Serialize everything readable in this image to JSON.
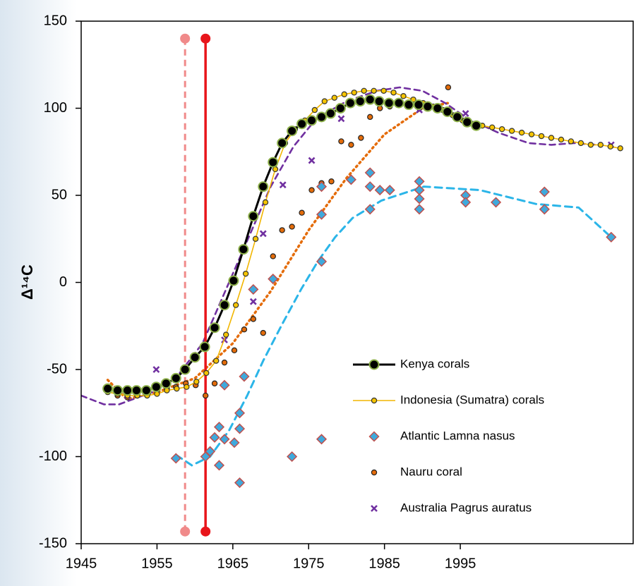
{
  "chart_data": {
    "type": "scatter",
    "ylabel": "Δ¹⁴C",
    "xlim": [
      1945,
      2017.8
    ],
    "ylim": [
      -150,
      150
    ],
    "xticks": [
      1945,
      1955,
      1965,
      1975,
      1985,
      1995
    ],
    "yticks": [
      -150,
      -100,
      -50,
      0,
      50,
      100,
      150
    ],
    "legend": "lower right",
    "reference_lines": [
      {
        "x": 1958.7,
        "ymin": -143,
        "ymax": 140,
        "color": "#f08a8a",
        "dashed": true
      },
      {
        "x": 1961.4,
        "ymin": -143,
        "ymax": 140,
        "color": "#e8151b",
        "dashed": false
      }
    ],
    "series": [
      {
        "name": "Kenya corals",
        "marker": "circle",
        "color": "#000000",
        "edgecolor": "#8db04a",
        "line": "#000000",
        "x": [
          1948.5,
          1949.8,
          1951.1,
          1952.3,
          1953.6,
          1954.9,
          1956.2,
          1957.5,
          1958.7,
          1960.0,
          1961.3,
          1962.6,
          1963.9,
          1965.1,
          1966.4,
          1967.7,
          1969.0,
          1970.3,
          1971.5,
          1972.8,
          1974.1,
          1975.4,
          1976.7,
          1977.9,
          1979.2,
          1980.5,
          1981.8,
          1983.1,
          1984.3,
          1985.6,
          1986.9,
          1988.2,
          1989.5,
          1990.7,
          1992.0,
          1993.3,
          1994.6,
          1995.9,
          1997.1
        ],
        "values": [
          -61,
          -62,
          -62,
          -62,
          -62,
          -60,
          -58,
          -55,
          -50,
          -43,
          -37,
          -26,
          -13,
          1,
          19,
          38,
          55,
          69,
          80,
          87,
          91,
          93,
          95,
          97,
          100,
          103,
          104,
          105,
          104,
          103,
          103,
          102,
          102,
          101,
          100,
          98,
          95,
          92,
          90
        ]
      },
      {
        "name": "Indonesia (Sumatra) corals",
        "marker": "dot",
        "color": "#f5c400",
        "edgecolor": "#333333",
        "line": "#f2b600",
        "x": [
          1948.5,
          1949.8,
          1951.1,
          1952.4,
          1953.7,
          1955.0,
          1956.3,
          1957.6,
          1958.9,
          1960.2,
          1961.5,
          1962.8,
          1964.1,
          1965.4,
          1966.7,
          1968.0,
          1969.3,
          1970.6,
          1971.9,
          1973.2,
          1974.5,
          1975.8,
          1977.1,
          1978.4,
          1979.7,
          1981.0,
          1982.3,
          1983.6,
          1984.9,
          1986.2,
          1987.5,
          1988.8,
          1990.1,
          1991.4,
          1992.7,
          1994.0,
          1995.3,
          1996.6,
          1997.9,
          1999.2,
          2000.5,
          2001.8,
          2003.1,
          2004.4,
          2005.7,
          2007.0,
          2008.3,
          2009.6,
          2010.9,
          2012.2,
          2013.5,
          2014.8,
          2016.1
        ],
        "values": [
          -63,
          -64,
          -65,
          -65,
          -65,
          -64,
          -62,
          -61,
          -60,
          -57,
          -52,
          -45,
          -30,
          -13,
          5,
          25,
          46,
          65,
          80,
          88,
          93,
          99,
          104,
          106,
          108,
          109,
          110,
          110,
          110,
          109,
          107,
          105,
          103,
          101,
          99,
          96,
          93,
          91,
          90,
          89,
          88,
          87,
          86,
          85,
          84,
          83,
          82,
          81,
          80,
          79,
          79,
          78,
          77
        ]
      },
      {
        "name": "Atlantic Lamna nasus",
        "marker": "diamond",
        "color": "#3fa9dc",
        "edgecolor": "#c0504d",
        "x": [
          1957.5,
          1961.4,
          1962.0,
          1962.6,
          1963.2,
          1963.2,
          1963.9,
          1963.9,
          1965.2,
          1965.9,
          1965.9,
          1965.9,
          1966.5,
          1967.7,
          1970.3,
          1972.8,
          1976.7,
          1976.7,
          1976.7,
          1976.7,
          1980.6,
          1983.1,
          1983.1,
          1983.1,
          1984.4,
          1985.7,
          1989.6,
          1989.6,
          1989.6,
          1989.6,
          1995.7,
          1995.7,
          1999.7,
          2006.1,
          2006.1,
          2014.9
        ],
        "values": [
          -101,
          -100,
          -97,
          -89,
          -105,
          -83,
          -90,
          -59,
          -92,
          -75,
          -84,
          -115,
          -54,
          -4,
          2,
          -100,
          55,
          39,
          12,
          -90,
          59,
          63,
          55,
          42,
          53,
          53,
          58,
          53,
          48,
          42,
          50,
          46,
          46,
          52,
          42,
          26
        ],
        "fit": {
          "color": "#2bb5e8",
          "x": [
            1957.5,
            1959.6,
            1962.0,
            1964.5,
            1966.9,
            1969.0,
            1971.5,
            1974.0,
            1976.2,
            1978.5,
            1980.8,
            1984.6,
            1990.2,
            1997.6,
            2005.0,
            2010.6,
            2014.9
          ],
          "values": [
            -99,
            -105,
            -100,
            -85,
            -65,
            -45,
            -24,
            -4,
            12,
            26,
            37,
            47,
            55,
            53,
            45,
            43,
            26
          ]
        }
      },
      {
        "name": "Nauru coral",
        "marker": "dot",
        "color": "#e46c0a",
        "edgecolor": "#222222",
        "x": [
          1948.5,
          1949.8,
          1951.1,
          1952.4,
          1953.8,
          1955.0,
          1956.3,
          1957.5,
          1958.8,
          1960.1,
          1961.4,
          1962.6,
          1963.9,
          1965.2,
          1966.5,
          1967.7,
          1969.0,
          1970.3,
          1971.5,
          1972.8,
          1974.1,
          1975.4,
          1976.7,
          1978.0,
          1979.3,
          1980.6,
          1981.9,
          1983.1,
          1984.4,
          1985.7,
          1987.0,
          1988.3,
          1989.6,
          1993.4
        ],
        "values": [
          -62,
          -65,
          -66,
          -65,
          -64,
          -62,
          -61,
          -60,
          -58,
          -59,
          -65,
          -58,
          -46,
          -39,
          -27,
          -21,
          -29,
          15,
          30,
          32,
          40,
          53,
          57,
          58,
          81,
          79,
          83,
          95,
          100,
          101,
          102,
          102,
          100,
          112
        ],
        "fit": {
          "color": "#e46c0a",
          "x": [
            1948.5,
            1951.0,
            1955.0,
            1960.0,
            1965.0,
            1970.0,
            1975.0,
            1980.0,
            1985.0,
            1990.0,
            1993.4
          ],
          "values": [
            -56,
            -67,
            -63,
            -55,
            -35,
            -5,
            30,
            60,
            85,
            100,
            103
          ]
        }
      },
      {
        "name": "Australia Pagrus auratus",
        "marker": "x",
        "color": "#7030a0",
        "x": [
          1951.1,
          1954.9,
          1963.9,
          1967.7,
          1969.0,
          1971.6,
          1975.4,
          1979.3,
          1989.6,
          1995.7,
          2014.9
        ],
        "values": [
          -65,
          -50,
          -33,
          -11,
          28,
          56,
          70,
          94,
          99,
          97,
          79
        ],
        "fit": {
          "color": "#7030a0",
          "x": [
            1945,
            1948,
            1950,
            1955,
            1958,
            1961,
            1964,
            1967,
            1970,
            1973,
            1976,
            1980,
            1984,
            1987,
            1990,
            1993,
            1996,
            2000,
            2004,
            2007,
            2010,
            2013
          ],
          "values": [
            -65,
            -70,
            -70,
            -62,
            -52,
            -35,
            -5,
            25,
            55,
            78,
            94,
            104,
            110,
            112,
            110,
            103,
            94,
            86,
            80,
            79,
            80,
            79
          ]
        }
      }
    ]
  }
}
